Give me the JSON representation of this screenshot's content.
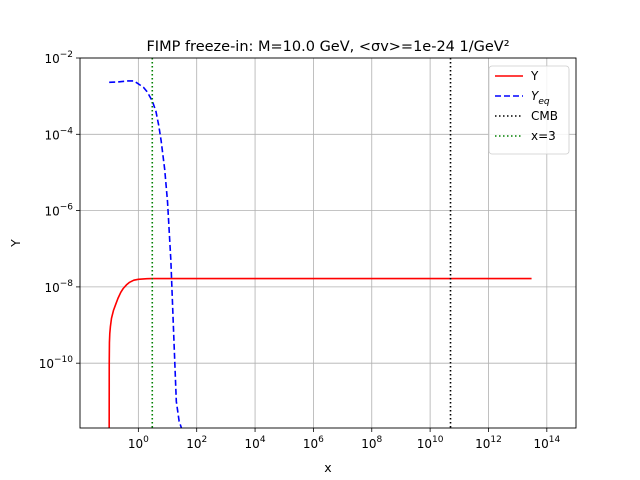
{
  "chart_data": {
    "type": "line",
    "title": "FIMP freeze-in: M=10.0 GeV, <σv>=1e-24 1/GeV²",
    "xlabel": "x",
    "ylabel": "Y",
    "xscale": "log",
    "yscale": "log",
    "xlim": [
      0.01,
      1000000000000000.0
    ],
    "ylim": [
      2e-12,
      0.01
    ],
    "grid": true,
    "legend_position": "top-right",
    "x_ticks": [
      {
        "value": 1,
        "base": "10",
        "exp": "0"
      },
      {
        "value": 100,
        "base": "10",
        "exp": "2"
      },
      {
        "value": 10000,
        "base": "10",
        "exp": "4"
      },
      {
        "value": 1000000,
        "base": "10",
        "exp": "6"
      },
      {
        "value": 100000000,
        "base": "10",
        "exp": "8"
      },
      {
        "value": 10000000000,
        "base": "10",
        "exp": "10"
      },
      {
        "value": 1000000000000,
        "base": "10",
        "exp": "12"
      },
      {
        "value": 100000000000000,
        "base": "10",
        "exp": "14"
      }
    ],
    "y_ticks": [
      {
        "value": 1e-10,
        "base": "10",
        "exp": "−10"
      },
      {
        "value": 1e-08,
        "base": "10",
        "exp": "−8"
      },
      {
        "value": 1e-06,
        "base": "10",
        "exp": "−6"
      },
      {
        "value": 0.0001,
        "base": "10",
        "exp": "−4"
      },
      {
        "value": 0.01,
        "base": "10",
        "exp": "−2"
      }
    ],
    "series": [
      {
        "name": "Y",
        "color": "#ff0000",
        "dash": "solid",
        "x": [
          0.1,
          0.1005,
          0.102,
          0.105,
          0.11,
          0.12,
          0.14,
          0.17,
          0.2,
          0.25,
          0.3,
          0.4,
          0.5,
          0.7,
          1,
          1.5,
          2,
          3,
          5,
          10,
          100,
          10000.0,
          100000000.0,
          1000000000000.0,
          30000000000000.0
        ],
        "y": [
          2e-12,
          1e-10,
          3.5e-10,
          6e-10,
          9e-10,
          1.5e-09,
          2.4e-09,
          3.6e-09,
          5e-09,
          7.2e-09,
          9e-09,
          1.15e-08,
          1.32e-08,
          1.5e-08,
          1.58e-08,
          1.62e-08,
          1.64e-08,
          1.65e-08,
          1.65e-08,
          1.65e-08,
          1.65e-08,
          1.65e-08,
          1.65e-08,
          1.65e-08,
          1.65e-08
        ]
      },
      {
        "name": "Y_eq",
        "legend_base": "Y",
        "legend_sub": "eq",
        "color": "#0000ff",
        "dash": "dashed",
        "x": [
          0.1,
          0.2,
          0.4,
          0.7,
          1,
          1.5,
          2,
          3,
          4,
          5,
          6,
          8,
          10,
          13,
          16,
          20,
          25,
          30
        ],
        "y": [
          0.0023,
          0.00235,
          0.0025,
          0.0025,
          0.0021,
          0.0017,
          0.0013,
          0.00075,
          0.0004,
          0.00017,
          7e-05,
          1.2e-05,
          1.7e-06,
          5e-08,
          8e-10,
          1e-11,
          3e-12,
          2e-12
        ]
      },
      {
        "name": "CMB",
        "color": "#000000",
        "dash": "dotted",
        "vline_x": 50000000000.0
      },
      {
        "name": "x=3",
        "color": "#008000",
        "dash": "dotted",
        "vline_x": 3
      }
    ]
  }
}
